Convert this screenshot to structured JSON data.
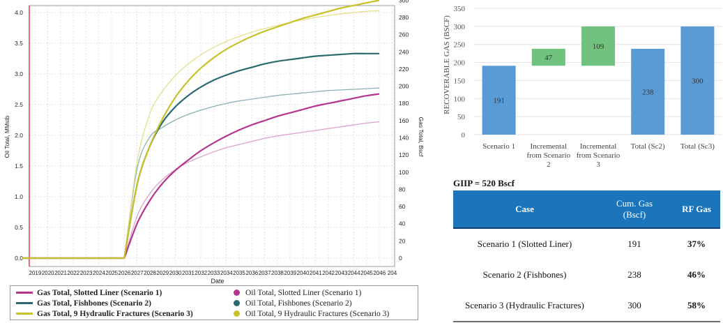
{
  "left_chart": {
    "xlabel": "Date",
    "y_left_label": "Oil Total, MMstb",
    "y_right_label": "Gas Total, Bscf",
    "y_left_ticks": [
      "0.0",
      "0.5",
      "1.0",
      "1.5",
      "2.0",
      "2.5",
      "3.0",
      "3.5",
      "4.0"
    ],
    "y_right_ticks": [
      "0",
      "20",
      "40",
      "60",
      "80",
      "100",
      "120",
      "140",
      "160",
      "180",
      "200",
      "220",
      "240",
      "260",
      "280",
      "300"
    ],
    "x_ticks": [
      "2019",
      "2020",
      "2021",
      "2022",
      "2023",
      "2024",
      "2025",
      "2026",
      "2027",
      "2028",
      "2029",
      "2030",
      "2031",
      "2032",
      "2033",
      "2034",
      "2035",
      "2036",
      "2037",
      "2038",
      "2039",
      "2040",
      "2041",
      "2042",
      "2043",
      "2044",
      "2045",
      "2046",
      "204"
    ]
  },
  "legend": {
    "gas_s1": "Gas Total, Slotted Liner (Scenario 1)",
    "gas_s2": "Gas Total, Fishbones (Scenario 2)",
    "gas_s3": "Gas Total, 9 Hydraulic Fractures (Scenario 3)",
    "oil_s1": "Oil Total, Slotted Liner (Scenario 1)",
    "oil_s2": "Oil Total, Fishbones (Scenario 2)",
    "oil_s3": "Oil Total, 9 Hydraulic Fractures (Scenario 3)"
  },
  "colors": {
    "scenario1": "#b5348e",
    "scenario2": "#2a6a6e",
    "scenario3": "#c7c12a",
    "oil_scenario1": "#d9a3cb",
    "oil_scenario2": "#8bb2b6",
    "oil_scenario3": "#e5e08c",
    "bar_blue": "#5b9bd5",
    "bar_green": "#70c27e",
    "table_header": "#1b75bb"
  },
  "chart_data": [
    {
      "type": "line",
      "x": [
        2018,
        2026,
        2027,
        2028,
        2029,
        2030,
        2031,
        2032,
        2033,
        2034,
        2035,
        2036,
        2037,
        2038,
        2039,
        2040,
        2041,
        2042,
        2043,
        2044,
        2045,
        2046
      ],
      "xlabel": "Date",
      "ylabel": "Oil Total, MMstb",
      "y2label": "Gas Total, Bscf",
      "ylim": [
        0,
        4.2
      ],
      "y2lim": [
        0,
        300
      ],
      "grid": true,
      "legend_position": "bottom",
      "series": [
        {
          "name": "Gas Total, Slotted Liner (Scenario 1)",
          "axis": "right",
          "values": [
            0,
            0,
            40,
            67,
            87,
            102,
            114,
            125,
            134,
            142,
            149,
            155,
            160,
            165,
            169,
            173,
            177,
            180,
            183,
            186,
            189,
            191
          ]
        },
        {
          "name": "Gas Total, Fishbones (Scenario 2)",
          "axis": "right",
          "values": [
            0,
            0,
            85,
            130,
            158,
            176,
            189,
            199,
            207,
            213,
            218,
            222,
            226,
            229,
            231,
            233,
            235,
            236,
            237,
            238,
            238,
            238
          ]
        },
        {
          "name": "Gas Total, 9 Hydraulic Fractures (Scenario 3)",
          "axis": "right",
          "values": [
            0,
            0,
            85,
            130,
            162,
            187,
            206,
            221,
            233,
            243,
            251,
            258,
            264,
            269,
            274,
            279,
            283,
            287,
            291,
            294,
            297,
            300
          ]
        },
        {
          "name": "Oil Total, Slotted Liner (Scenario 1)",
          "axis": "left",
          "values": [
            0,
            0,
            0.68,
            1.05,
            1.28,
            1.44,
            1.56,
            1.65,
            1.73,
            1.8,
            1.85,
            1.9,
            1.95,
            1.99,
            2.02,
            2.05,
            2.08,
            2.11,
            2.14,
            2.17,
            2.2,
            2.22
          ]
        },
        {
          "name": "Oil Total, Fishbones (Scenario 2)",
          "axis": "left",
          "values": [
            0,
            0,
            1.45,
            1.97,
            2.13,
            2.25,
            2.34,
            2.41,
            2.47,
            2.52,
            2.56,
            2.59,
            2.62,
            2.65,
            2.67,
            2.69,
            2.71,
            2.73,
            2.74,
            2.75,
            2.76,
            2.77
          ]
        },
        {
          "name": "Oil Total, 9 Hydraulic Fractures (Scenario 3)",
          "axis": "left",
          "values": [
            0,
            0,
            1.55,
            2.35,
            2.72,
            2.97,
            3.16,
            3.31,
            3.43,
            3.53,
            3.61,
            3.68,
            3.74,
            3.79,
            3.84,
            3.88,
            3.92,
            3.95,
            3.98,
            4.0,
            4.02,
            4.03
          ]
        }
      ]
    },
    {
      "type": "bar",
      "ylabel": "RECOVERABLE GAS (BSCF)",
      "ylim": [
        0,
        350
      ],
      "yticks": [
        "0",
        "50",
        "100",
        "150",
        "200",
        "250",
        "300",
        "350"
      ],
      "categories": [
        {
          "lines": [
            "Scenario 1"
          ],
          "base": 0,
          "value": 191,
          "label": "191",
          "color": "blue"
        },
        {
          "lines": [
            "Incremental",
            "from Scenario",
            "2"
          ],
          "base": 191,
          "value": 47,
          "label": "47",
          "color": "green"
        },
        {
          "lines": [
            "Incremental",
            "from Scenario",
            "3"
          ],
          "base": 191,
          "value": 109,
          "label": "109",
          "color": "green"
        },
        {
          "lines": [
            "Total (Sc2)"
          ],
          "base": 0,
          "value": 238,
          "label": "238",
          "color": "blue"
        },
        {
          "lines": [
            "Total (Sc3)"
          ],
          "base": 0,
          "value": 300,
          "label": "300",
          "color": "blue"
        }
      ]
    },
    {
      "type": "table",
      "title": "GIIP = 520 Bscf",
      "headers": [
        "Case",
        "Cum. Gas (Bscf)",
        "RF Gas"
      ],
      "rows": [
        [
          "Scenario 1 (Slotted Liner)",
          "191",
          "37%"
        ],
        [
          "Scenario 2 (Fishbones)",
          "238",
          "46%"
        ],
        [
          "Scenario 3 (Hydraulic Fractures)",
          "300",
          "58%"
        ]
      ]
    }
  ]
}
